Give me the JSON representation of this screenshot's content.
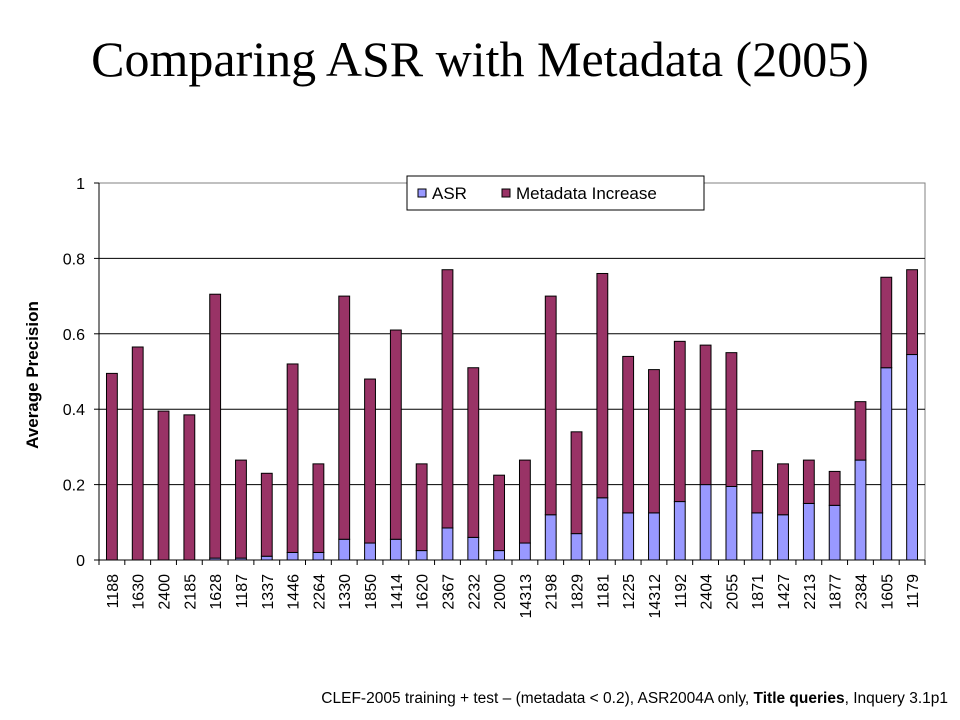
{
  "slide": {
    "title": "Comparing ASR with Metadata (2005)",
    "footnote_parts": [
      {
        "text": "CLEF-2005 training + test – (metadata < 0.2), ASR2004A only, ",
        "bold": false
      },
      {
        "text": "Title queries",
        "bold": true
      },
      {
        "text": ", Inquery 3.1p1",
        "bold": false
      }
    ]
  },
  "chart_data": {
    "type": "bar",
    "stacked": true,
    "ylabel": "Average Precision",
    "xlabel": "",
    "ylim": [
      0,
      1
    ],
    "yticks": [
      "0",
      "0.2",
      "0.4",
      "0.6",
      "0.8",
      "1"
    ],
    "grid": true,
    "legend_position": "top",
    "categories": [
      "1188",
      "1630",
      "2400",
      "2185",
      "1628",
      "1187",
      "1337",
      "1446",
      "2264",
      "1330",
      "1850",
      "1414",
      "1620",
      "2367",
      "2232",
      "2000",
      "14313",
      "2198",
      "1829",
      "1181",
      "1225",
      "14312",
      "1192",
      "2404",
      "2055",
      "1871",
      "1427",
      "2213",
      "1877",
      "2384",
      "1605",
      "1179"
    ],
    "series": [
      {
        "name": "ASR",
        "color": "#9999ff",
        "values": [
          0,
          0,
          0,
          0,
          0.005,
          0.005,
          0.01,
          0.02,
          0.02,
          0.055,
          0.045,
          0.055,
          0.025,
          0.085,
          0.06,
          0.025,
          0.045,
          0.12,
          0.07,
          0.165,
          0.125,
          0.125,
          0.155,
          0.2,
          0.195,
          0.125,
          0.12,
          0.15,
          0.145,
          0.265,
          0.51,
          0.545
        ]
      },
      {
        "name": "Metadata Increase",
        "color": "#993366",
        "values": [
          0.495,
          0.565,
          0.395,
          0.385,
          0.7,
          0.26,
          0.22,
          0.5,
          0.235,
          0.645,
          0.435,
          0.555,
          0.23,
          0.685,
          0.45,
          0.2,
          0.22,
          0.58,
          0.27,
          0.595,
          0.415,
          0.38,
          0.425,
          0.37,
          0.355,
          0.165,
          0.135,
          0.115,
          0.09,
          0.155,
          0.24,
          0.225
        ]
      }
    ]
  }
}
